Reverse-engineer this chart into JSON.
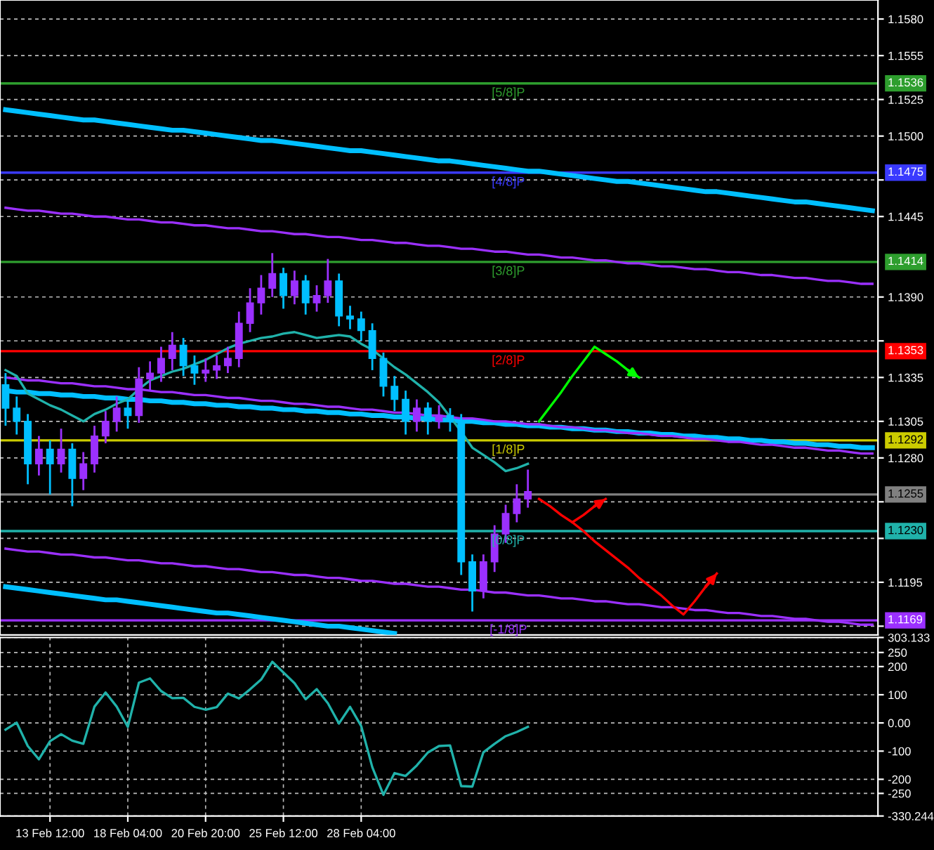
{
  "chart_data": [
    {
      "type": "candlestick",
      "categories": [
        null,
        null,
        null,
        null,
        null,
        null,
        null,
        null,
        null,
        null,
        null,
        null,
        null,
        null,
        null,
        null,
        null,
        null,
        null,
        null,
        null,
        null,
        null,
        null,
        null,
        null,
        null,
        null,
        null,
        null,
        null,
        null,
        null,
        null,
        null,
        null,
        null,
        null,
        null,
        null,
        null,
        null,
        null,
        null,
        null,
        null,
        null,
        null,
        null,
        null,
        null,
        null,
        null,
        null,
        null,
        null,
        null,
        null,
        null,
        null,
        null,
        null,
        null,
        null,
        null,
        null,
        null,
        null,
        null,
        null,
        null,
        null,
        null,
        null,
        null,
        null,
        null,
        null,
        null
      ],
      "ohlc": [
        [
          1.133,
          1.1338,
          1.1302,
          1.1314
        ],
        [
          1.1314,
          1.1322,
          1.1296,
          1.1305
        ],
        [
          1.1305,
          1.131,
          1.1262,
          1.1276
        ],
        [
          1.1276,
          1.1295,
          1.1268,
          1.1286
        ],
        [
          1.1286,
          1.1292,
          1.1255,
          1.1276
        ],
        [
          1.1276,
          1.13,
          1.127,
          1.1286
        ],
        [
          1.1286,
          1.129,
          1.1247,
          1.1266
        ],
        [
          1.1266,
          1.1284,
          1.1258,
          1.1276
        ],
        [
          1.1276,
          1.1302,
          1.127,
          1.1295
        ],
        [
          1.1295,
          1.1312,
          1.129,
          1.1305
        ],
        [
          1.1305,
          1.1322,
          1.1298,
          1.1314
        ],
        [
          1.1314,
          1.132,
          1.13,
          1.1309
        ],
        [
          1.1309,
          1.1342,
          1.1304,
          1.1334
        ],
        [
          1.1334,
          1.1346,
          1.1326,
          1.1338
        ],
        [
          1.1338,
          1.1356,
          1.1332,
          1.1348
        ],
        [
          1.1348,
          1.1366,
          1.134,
          1.1357
        ],
        [
          1.1357,
          1.1362,
          1.1336,
          1.1343
        ],
        [
          1.1343,
          1.135,
          1.133,
          1.1338
        ],
        [
          1.1338,
          1.1348,
          1.1332,
          1.134
        ],
        [
          1.134,
          1.135,
          1.1334,
          1.1343
        ],
        [
          1.1343,
          1.1356,
          1.1338,
          1.1348
        ],
        [
          1.1348,
          1.138,
          1.1342,
          1.1372
        ],
        [
          1.1372,
          1.1396,
          1.1366,
          1.1386
        ],
        [
          1.1386,
          1.1405,
          1.1378,
          1.1396
        ],
        [
          1.1396,
          1.142,
          1.139,
          1.1406
        ],
        [
          1.1406,
          1.141,
          1.1382,
          1.1391
        ],
        [
          1.1391,
          1.1408,
          1.1385,
          1.1401
        ],
        [
          1.1401,
          1.1405,
          1.1378,
          1.1386
        ],
        [
          1.1386,
          1.1398,
          1.138,
          1.1391
        ],
        [
          1.1391,
          1.1416,
          1.1386,
          1.1401
        ],
        [
          1.1401,
          1.1406,
          1.137,
          1.1377
        ],
        [
          1.1377,
          1.1384,
          1.1368,
          1.1375
        ],
        [
          1.1375,
          1.138,
          1.136,
          1.1367
        ],
        [
          1.1367,
          1.1372,
          1.134,
          1.1348
        ],
        [
          1.1348,
          1.1352,
          1.1322,
          1.1329
        ],
        [
          1.1329,
          1.1336,
          1.1312,
          1.132
        ],
        [
          1.132,
          1.1326,
          1.1296,
          1.1305
        ],
        [
          1.1305,
          1.132,
          1.1298,
          1.1314
        ],
        [
          1.1314,
          1.1318,
          1.1296,
          1.1305
        ],
        [
          1.1305,
          1.1316,
          1.13,
          1.1309
        ],
        [
          1.1309,
          1.1314,
          1.1298,
          1.1305
        ],
        [
          1.1305,
          1.131,
          1.12,
          1.1209
        ],
        [
          1.1209,
          1.1214,
          1.1175,
          1.1189
        ],
        [
          1.1189,
          1.1214,
          1.1184,
          1.1209
        ],
        [
          1.1209,
          1.1234,
          1.1202,
          1.1228
        ],
        [
          1.1228,
          1.1248,
          1.1222,
          1.1242
        ],
        [
          1.1242,
          1.1262,
          1.1236,
          1.1252
        ],
        [
          1.1252,
          1.1272,
          1.1246,
          1.1257
        ],
        null,
        null,
        null,
        null,
        null,
        null,
        null,
        null,
        null,
        null,
        null,
        null,
        null,
        null,
        null,
        null,
        null,
        null,
        null,
        null,
        null,
        null,
        null,
        null,
        null,
        null,
        null,
        null,
        null,
        null,
        null
      ],
      "colors": [
        "#00bfff",
        "#00bfff",
        "#00bfff",
        "#9b30ff",
        "#00bfff",
        "#9b30ff",
        "#00bfff",
        "#9b30ff",
        "#9b30ff",
        "#9b30ff",
        "#9b30ff",
        "#00bfff",
        "#9b30ff",
        "#9b30ff",
        "#9b30ff",
        "#9b30ff",
        "#00bfff",
        "#00bfff",
        "#9b30ff",
        "#9b30ff",
        "#9b30ff",
        "#9b30ff",
        "#9b30ff",
        "#9b30ff",
        "#9b30ff",
        "#00bfff",
        "#9b30ff",
        "#00bfff",
        "#9b30ff",
        "#9b30ff",
        "#00bfff",
        "#00bfff",
        "#00bfff",
        "#00bfff",
        "#00bfff",
        "#00bfff",
        "#00bfff",
        "#9b30ff",
        "#00bfff",
        "#9b30ff",
        "#00bfff",
        "#00bfff",
        "#00bfff",
        "#9b30ff",
        "#9b30ff",
        "#9b30ff",
        "#9b30ff",
        "#9b30ff",
        null,
        null,
        null,
        null,
        null,
        null,
        null,
        null,
        null,
        null,
        null,
        null,
        null,
        null,
        null,
        null,
        null,
        null,
        null,
        null,
        null,
        null,
        null,
        null,
        null,
        null,
        null,
        null,
        null,
        null,
        null
      ],
      "series": [
        {
          "type": "line",
          "color": "#00bfff",
          "values": [
            1.1518,
            1.1517,
            1.1516,
            1.1515,
            1.1514,
            1.1513,
            1.1512,
            1.1511,
            1.1511,
            1.151,
            1.1509,
            1.1508,
            1.1507,
            1.1506,
            1.1505,
            1.1504,
            1.1504,
            1.1503,
            1.1502,
            1.1501,
            1.15,
            1.1499,
            1.1498,
            1.1497,
            1.1497,
            1.1496,
            1.1495,
            1.1494,
            1.1493,
            1.1492,
            1.1491,
            1.149,
            1.149,
            1.1489,
            1.1488,
            1.1487,
            1.1486,
            1.1485,
            1.1484,
            1.1483,
            1.1483,
            1.1482,
            1.1481,
            1.148,
            1.1479,
            1.1478,
            1.1477,
            1.1476,
            1.1476,
            1.1475,
            1.1474,
            1.1473,
            1.1472,
            1.1471,
            1.147,
            1.1469,
            1.1469,
            1.1468,
            1.1467,
            1.1466,
            1.1465,
            1.1464,
            1.1463,
            1.1462,
            1.1462,
            1.1461,
            1.146,
            1.1459,
            1.1458,
            1.1457,
            1.1456,
            1.1455,
            1.1455,
            1.1454,
            1.1453,
            1.1452,
            1.1451,
            1.145,
            1.1449
          ]
        },
        {
          "type": "line",
          "color": "#9b30ff",
          "values": [
            1.1451,
            1.145,
            1.1449,
            1.1449,
            1.1448,
            1.1447,
            1.1447,
            1.1446,
            1.1445,
            1.1445,
            1.1444,
            1.1443,
            1.1443,
            1.1442,
            1.1441,
            1.1441,
            1.144,
            1.1439,
            1.1439,
            1.1438,
            1.1437,
            1.1437,
            1.1436,
            1.1435,
            1.1435,
            1.1434,
            1.1433,
            1.1433,
            1.1432,
            1.1431,
            1.1431,
            1.143,
            1.1429,
            1.1429,
            1.1428,
            1.1427,
            1.1427,
            1.1426,
            1.1425,
            1.1425,
            1.1424,
            1.1423,
            1.1423,
            1.1422,
            1.1421,
            1.1421,
            1.142,
            1.1419,
            1.1419,
            1.1418,
            1.1417,
            1.1417,
            1.1416,
            1.1415,
            1.1415,
            1.1414,
            1.1413,
            1.1413,
            1.1412,
            1.1411,
            1.1411,
            1.141,
            1.1409,
            1.1409,
            1.1408,
            1.1407,
            1.1407,
            1.1406,
            1.1405,
            1.1405,
            1.1404,
            1.1403,
            1.1403,
            1.1402,
            1.1401,
            1.1401,
            1.14,
            1.1399,
            1.1399
          ]
        },
        {
          "type": "line",
          "color": "#00bfff",
          "values": [
            1.1326,
            1.1325,
            1.1325,
            1.1324,
            1.1324,
            1.1323,
            1.1323,
            1.1322,
            1.1322,
            1.1321,
            1.1321,
            1.132,
            1.132,
            1.1319,
            1.1319,
            1.1318,
            1.1318,
            1.1317,
            1.1317,
            1.1316,
            1.1316,
            1.1315,
            1.1315,
            1.1314,
            1.1314,
            1.1313,
            1.1313,
            1.1312,
            1.1312,
            1.1311,
            1.1311,
            1.131,
            1.131,
            1.1309,
            1.1309,
            1.1308,
            1.1308,
            1.1307,
            1.1307,
            1.1306,
            1.1306,
            1.1305,
            1.1305,
            1.1304,
            1.1304,
            1.1303,
            1.1303,
            1.1302,
            1.1302,
            1.1301,
            1.1301,
            1.13,
            1.13,
            1.1299,
            1.1299,
            1.1298,
            1.1298,
            1.1297,
            1.1297,
            1.1296,
            1.1296,
            1.1295,
            1.1295,
            1.1294,
            1.1294,
            1.1293,
            1.1293,
            1.1292,
            1.1292,
            1.1291,
            1.1291,
            1.129,
            1.129,
            1.1289,
            1.1289,
            1.1288,
            1.1288,
            1.1287,
            1.1287
          ]
        },
        {
          "type": "line",
          "color": "#9b30ff",
          "values": [
            1.1335,
            1.1334,
            1.1333,
            1.1333,
            1.1332,
            1.1331,
            1.1331,
            1.133,
            1.1329,
            1.1329,
            1.1328,
            1.1327,
            1.1327,
            1.1326,
            1.1325,
            1.1325,
            1.1324,
            1.1323,
            1.1323,
            1.1322,
            1.1321,
            1.1321,
            1.132,
            1.1319,
            1.1319,
            1.1318,
            1.1317,
            1.1317,
            1.1316,
            1.1315,
            1.1315,
            1.1314,
            1.1313,
            1.1313,
            1.1312,
            1.1311,
            1.1311,
            1.131,
            1.1309,
            1.1309,
            1.1308,
            1.1307,
            1.1307,
            1.1306,
            1.1305,
            1.1305,
            1.1304,
            1.1303,
            1.1303,
            1.1302,
            1.1301,
            1.1301,
            1.13,
            1.1299,
            1.1299,
            1.1298,
            1.1297,
            1.1297,
            1.1296,
            1.1295,
            1.1295,
            1.1294,
            1.1293,
            1.1293,
            1.1292,
            1.1291,
            1.1291,
            1.129,
            1.1289,
            1.1289,
            1.1288,
            1.1287,
            1.1287,
            1.1286,
            1.1285,
            1.1285,
            1.1284,
            1.1283,
            1.1283
          ]
        },
        {
          "type": "line",
          "color": "#9b30ff",
          "values": [
            1.1218,
            1.1217,
            1.1216,
            1.1216,
            1.1215,
            1.1214,
            1.1214,
            1.1213,
            1.1212,
            1.1212,
            1.1211,
            1.121,
            1.121,
            1.1209,
            1.1208,
            1.1208,
            1.1207,
            1.1206,
            1.1206,
            1.1205,
            1.1204,
            1.1204,
            1.1203,
            1.1202,
            1.1202,
            1.1201,
            1.12,
            1.12,
            1.1199,
            1.1198,
            1.1198,
            1.1197,
            1.1196,
            1.1196,
            1.1195,
            1.1194,
            1.1194,
            1.1193,
            1.1192,
            1.1192,
            1.1191,
            1.119,
            1.119,
            1.1189,
            1.1188,
            1.1188,
            1.1187,
            1.1186,
            1.1186,
            1.1185,
            1.1184,
            1.1184,
            1.1183,
            1.1182,
            1.1182,
            1.1181,
            1.118,
            1.118,
            1.1179,
            1.1178,
            1.1178,
            1.1177,
            1.1176,
            1.1176,
            1.1175,
            1.1174,
            1.1174,
            1.1173,
            1.1172,
            1.1172,
            1.1171,
            1.117,
            1.117,
            1.1169,
            1.1168,
            1.1168,
            1.1167,
            1.1166,
            1.1166
          ]
        },
        {
          "type": "line",
          "color": "#00bfff",
          "values": [
            1.1192,
            1.1191,
            1.119,
            1.1189,
            1.1188,
            1.1187,
            1.1186,
            1.1185,
            1.1184,
            1.1183,
            1.1183,
            1.1182,
            1.1181,
            1.118,
            1.1179,
            1.1178,
            1.1177,
            1.1176,
            1.1175,
            1.1174,
            1.1174,
            1.1173,
            1.1172,
            1.1171,
            1.117,
            1.1169,
            1.1168,
            1.1167,
            1.1166,
            1.1165,
            1.1165,
            1.1164,
            1.1163,
            1.1162,
            1.1161,
            1.116,
            null,
            null,
            null,
            null,
            null,
            null,
            null,
            null,
            null,
            null,
            null,
            null,
            null,
            null,
            null,
            null,
            null,
            null,
            null,
            null,
            null,
            null,
            null,
            null,
            null,
            null,
            null,
            null,
            null,
            null,
            null,
            null,
            null,
            null,
            null,
            null,
            null,
            null,
            null,
            null,
            null,
            null,
            null
          ]
        },
        {
          "type": "line",
          "color": "#20b2aa",
          "values": [
            1.134,
            1.1336,
            1.1324,
            1.132,
            1.1316,
            1.1313,
            1.1309,
            1.1305,
            1.131,
            1.1313,
            1.1317,
            1.132,
            1.1327,
            1.1333,
            1.1336,
            1.1339,
            1.1341,
            1.1344,
            1.1347,
            1.1351,
            1.1355,
            1.1358,
            1.136,
            1.1362,
            1.1363,
            1.1365,
            1.1366,
            1.1364,
            1.1362,
            1.1363,
            1.1364,
            1.1363,
            1.1358,
            1.1354,
            1.1348,
            1.1342,
            1.1337,
            1.1331,
            1.1325,
            1.1318,
            1.1308,
            1.1298,
            1.1287,
            1.1282,
            1.1277,
            1.1271,
            1.1273,
            1.1276,
            null,
            null,
            null,
            null,
            null,
            null,
            null,
            null,
            null,
            null,
            null,
            null,
            null,
            null,
            null,
            null,
            null,
            null,
            null,
            null,
            null,
            null,
            null,
            null,
            null,
            null,
            null,
            null,
            null,
            null,
            null
          ]
        },
        {
          "type": "line",
          "color": "#00ff00",
          "values": [
            null,
            null,
            null,
            null,
            null,
            null,
            null,
            null,
            null,
            null,
            null,
            null,
            null,
            null,
            null,
            null,
            null,
            null,
            null,
            null,
            null,
            null,
            null,
            null,
            null,
            null,
            null,
            null,
            null,
            null,
            null,
            null,
            null,
            null,
            null,
            null,
            null,
            null,
            null,
            null,
            null,
            null,
            null,
            null,
            null,
            null,
            null,
            null,
            1.1305,
            1.1315,
            1.1325,
            1.1336,
            1.1346,
            1.1356,
            1.1351,
            1.1346,
            1.134,
            1.1335,
            null,
            null,
            null,
            null,
            null,
            null,
            null,
            null,
            null,
            null,
            null,
            null,
            null,
            null,
            null,
            null,
            null,
            null,
            null,
            null,
            null
          ]
        },
        {
          "type": "line",
          "color": "#ff0000",
          "values": [
            null,
            null,
            null,
            null,
            null,
            null,
            null,
            null,
            null,
            null,
            null,
            null,
            null,
            null,
            null,
            null,
            null,
            null,
            null,
            null,
            null,
            null,
            null,
            null,
            null,
            null,
            null,
            null,
            null,
            null,
            null,
            null,
            null,
            null,
            null,
            null,
            null,
            null,
            null,
            null,
            null,
            null,
            null,
            null,
            null,
            null,
            null,
            null,
            1.1252,
            1.1247,
            1.1241,
            1.1236,
            1.1241,
            1.1247,
            1.1252,
            null,
            null,
            null,
            null,
            null,
            null,
            null,
            null,
            null,
            null,
            null,
            null,
            null,
            null,
            null,
            null,
            null,
            null,
            null,
            null,
            null,
            null,
            null,
            null
          ]
        },
        {
          "type": "line",
          "color": "#ff0000",
          "values": [
            null,
            null,
            null,
            null,
            null,
            null,
            null,
            null,
            null,
            null,
            null,
            null,
            null,
            null,
            null,
            null,
            null,
            null,
            null,
            null,
            null,
            null,
            null,
            null,
            null,
            null,
            null,
            null,
            null,
            null,
            null,
            null,
            null,
            null,
            null,
            null,
            null,
            null,
            null,
            null,
            null,
            null,
            null,
            null,
            null,
            null,
            null,
            null,
            null,
            null,
            null,
            1.1236,
            1.123,
            1.1223,
            1.1217,
            1.1211,
            1.1205,
            1.1198,
            1.1192,
            1.1186,
            1.1179,
            1.1173,
            1.1182,
            1.1192,
            1.1201,
            null,
            null,
            null,
            null,
            null,
            null,
            null,
            null,
            null,
            null,
            null,
            null,
            null,
            null
          ]
        }
      ],
      "ref_lines": [
        {
          "axis": "y",
          "value": 1.1536,
          "label": "[5/8]P",
          "color": "#2e9e2e"
        },
        {
          "axis": "y",
          "value": 1.1475,
          "label": "[4/8]P",
          "color": "#3a3aff"
        },
        {
          "axis": "y",
          "value": 1.1414,
          "label": "[3/8]P",
          "color": "#2e9e2e"
        },
        {
          "axis": "y",
          "value": 1.1353,
          "label": "[2/8]P",
          "color": "#ff0000"
        },
        {
          "axis": "y",
          "value": 1.1292,
          "label": "[1/8]P",
          "color": "#cccc00"
        },
        {
          "axis": "y",
          "value": 1.1255,
          "color": "#808080"
        },
        {
          "axis": "y",
          "value": 1.123,
          "label": "[0/8]P",
          "color": "#20b2aa"
        },
        {
          "axis": "y",
          "value": 1.1169,
          "label": "[-1/8]P",
          "color": "#9b30ff"
        }
      ],
      "ylim": [
        1.1159,
        1.1593
      ],
      "annotations": [
        "1.1536",
        "1.1475",
        "1.1414",
        "1.1353",
        "1.1292",
        "1.1255",
        "1.1230",
        "1.1169"
      ],
      "yticks": [
        {
          "value": 1.158,
          "label": "1.1580"
        },
        1.1555,
        1.1525,
        {
          "value": 1.15,
          "label": "1.1500"
        },
        {
          "value": 1.147,
          "label": null
        },
        1.1445,
        {
          "value": 1.139,
          "label": "1.1390"
        },
        {
          "value": 1.136,
          "label": null
        },
        1.1335,
        1.1305,
        {
          "value": 1.128,
          "label": "1.1280"
        },
        {
          "value": 1.125,
          "label": null
        },
        {
          "value": 1.1225,
          "label": null
        },
        1.1195,
        {
          "value": 1.1165,
          "label": null
        }
      ],
      "grid": true,
      "tick_labels": "y"
    },
    {
      "type": "line",
      "categories": [
        null,
        null,
        null,
        null,
        "13 Feb 12:00",
        null,
        null,
        null,
        null,
        null,
        null,
        "18 Feb 04:00",
        null,
        null,
        null,
        null,
        null,
        null,
        "20 Feb 20:00",
        null,
        null,
        null,
        null,
        null,
        null,
        "25 Feb 12:00",
        null,
        null,
        null,
        null,
        null,
        null,
        "28 Feb 04:00",
        null,
        null,
        null,
        null,
        null,
        null,
        null,
        null,
        null,
        null,
        null,
        null,
        null,
        null,
        null,
        null,
        null,
        null,
        null,
        null,
        null,
        null,
        null,
        null,
        null,
        null,
        null,
        null,
        null,
        null,
        null,
        null,
        null,
        null,
        null,
        null,
        null,
        null,
        null,
        null,
        null,
        null,
        null,
        null,
        null,
        null
      ],
      "series": [
        {
          "color": "#20b2aa",
          "values": [
            -24,
            1,
            -82,
            -129,
            -65,
            -40,
            -63,
            -74,
            58,
            108,
            58,
            -14,
            143,
            158,
            113,
            88,
            89,
            57,
            47,
            56,
            104,
            87,
            119,
            154,
            217,
            179,
            141,
            84,
            120,
            70,
            -2,
            57,
            -11,
            -157,
            -255,
            -178,
            -188,
            -151,
            -105,
            -82,
            -80,
            -224,
            -226,
            -104,
            -74,
            -47,
            -32,
            -14,
            null,
            null,
            null,
            null,
            null,
            null,
            null,
            null,
            null,
            null,
            null,
            null,
            null,
            null,
            null,
            null,
            null,
            null,
            null,
            null,
            null,
            null,
            null,
            null,
            null,
            null,
            null,
            null,
            null,
            null,
            null
          ]
        }
      ],
      "ylim": [
        -330.244,
        303.133
      ],
      "yticks": [
        {
          "value": 303.133,
          "label": "303.133"
        },
        250,
        200,
        100,
        {
          "value": 0,
          "label": "0.00"
        },
        -100,
        -200,
        -250,
        {
          "value": -330.244,
          "label": "-330.244"
        }
      ],
      "grid": true
    }
  ]
}
